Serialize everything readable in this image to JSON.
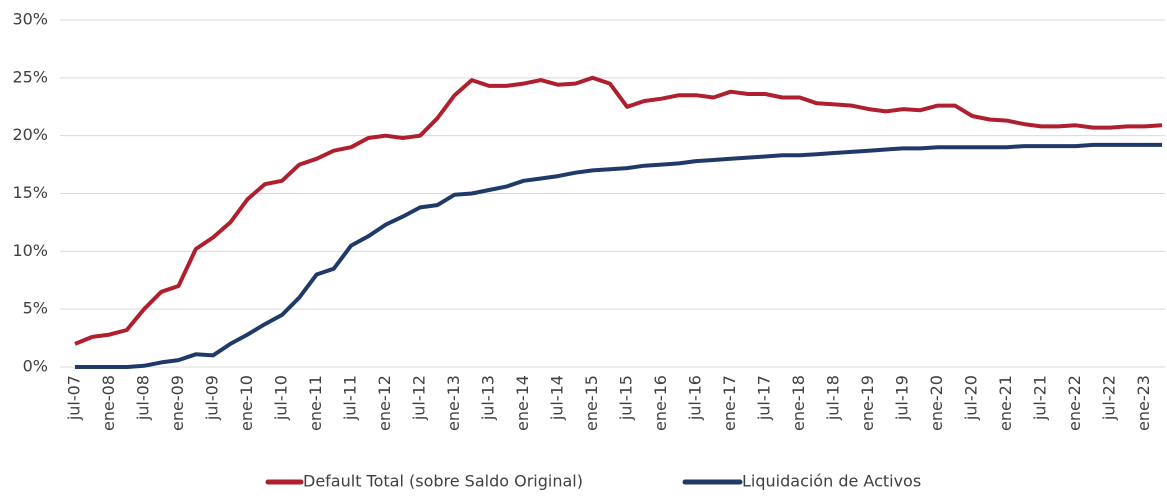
{
  "chart_data": {
    "type": "line",
    "categories": [
      "jul-07",
      null,
      "ene-08",
      null,
      "jul-08",
      null,
      "ene-09",
      null,
      "jul-09",
      null,
      "ene-10",
      null,
      "jul-10",
      null,
      "ene-11",
      null,
      "jul-11",
      null,
      "ene-12",
      null,
      "jul-12",
      null,
      "ene-13",
      null,
      "jul-13",
      null,
      "ene-14",
      null,
      "jul-14",
      null,
      "ene-15",
      null,
      "jul-15",
      null,
      "ene-16",
      null,
      "jul-16",
      null,
      "ene-17",
      null,
      "jul-17",
      null,
      "ene-18",
      null,
      "jul-18",
      null,
      "ene-19",
      null,
      "jul-19",
      null,
      "ene-20",
      null,
      "jul-20",
      null,
      "ene-21",
      null,
      "jul-21",
      null,
      "ene-22",
      null,
      "jul-22",
      null,
      "ene-23",
      null
    ],
    "series": [
      {
        "name": "Default Total (sobre Saldo Original)",
        "color": "#b01f2e",
        "values": [
          2.0,
          2.6,
          2.8,
          3.2,
          5.0,
          6.5,
          7.0,
          10.2,
          11.2,
          12.5,
          14.5,
          15.8,
          16.1,
          17.5,
          18.0,
          18.7,
          19.0,
          19.8,
          20.0,
          19.8,
          20.0,
          21.5,
          23.5,
          24.8,
          24.3,
          24.3,
          24.5,
          24.8,
          24.4,
          24.5,
          25.0,
          24.5,
          22.5,
          23.0,
          23.2,
          23.5,
          23.5,
          23.3,
          23.8,
          23.6,
          23.6,
          23.3,
          23.3,
          22.8,
          22.7,
          22.6,
          22.3,
          22.1,
          22.3,
          22.2,
          22.6,
          22.6,
          21.7,
          21.4,
          21.3,
          21.0,
          20.8,
          20.8,
          20.9,
          20.7,
          20.7,
          20.8,
          20.8,
          20.9
        ]
      },
      {
        "name": "Liquidación de Activos",
        "color": "#1f3a68",
        "values": [
          0,
          0,
          0,
          0,
          0.1,
          0.4,
          0.6,
          1.1,
          1.0,
          2.0,
          2.8,
          3.7,
          4.5,
          6.0,
          8.0,
          8.5,
          10.5,
          11.3,
          12.3,
          13.0,
          13.8,
          14.0,
          14.9,
          15.0,
          15.3,
          15.6,
          16.1,
          16.3,
          16.5,
          16.8,
          17.0,
          17.1,
          17.2,
          17.4,
          17.5,
          17.6,
          17.8,
          17.9,
          18.0,
          18.1,
          18.2,
          18.3,
          18.3,
          18.4,
          18.5,
          18.6,
          18.7,
          18.8,
          18.9,
          18.9,
          19.0,
          19.0,
          19.0,
          19.0,
          19.0,
          19.1,
          19.1,
          19.1,
          19.1,
          19.2,
          19.2,
          19.2,
          19.2,
          19.2
        ]
      }
    ],
    "ylim": [
      0,
      30
    ],
    "yticks": [
      {
        "value": 0,
        "label": "0%"
      },
      {
        "value": 5,
        "label": "5%"
      },
      {
        "value": 10,
        "label": "10%"
      },
      {
        "value": 15,
        "label": "15%"
      },
      {
        "value": 20,
        "label": "20%"
      },
      {
        "value": 25,
        "label": "25%"
      },
      {
        "value": 30,
        "label": "30%"
      }
    ],
    "grid": true,
    "legend": "bottom"
  }
}
